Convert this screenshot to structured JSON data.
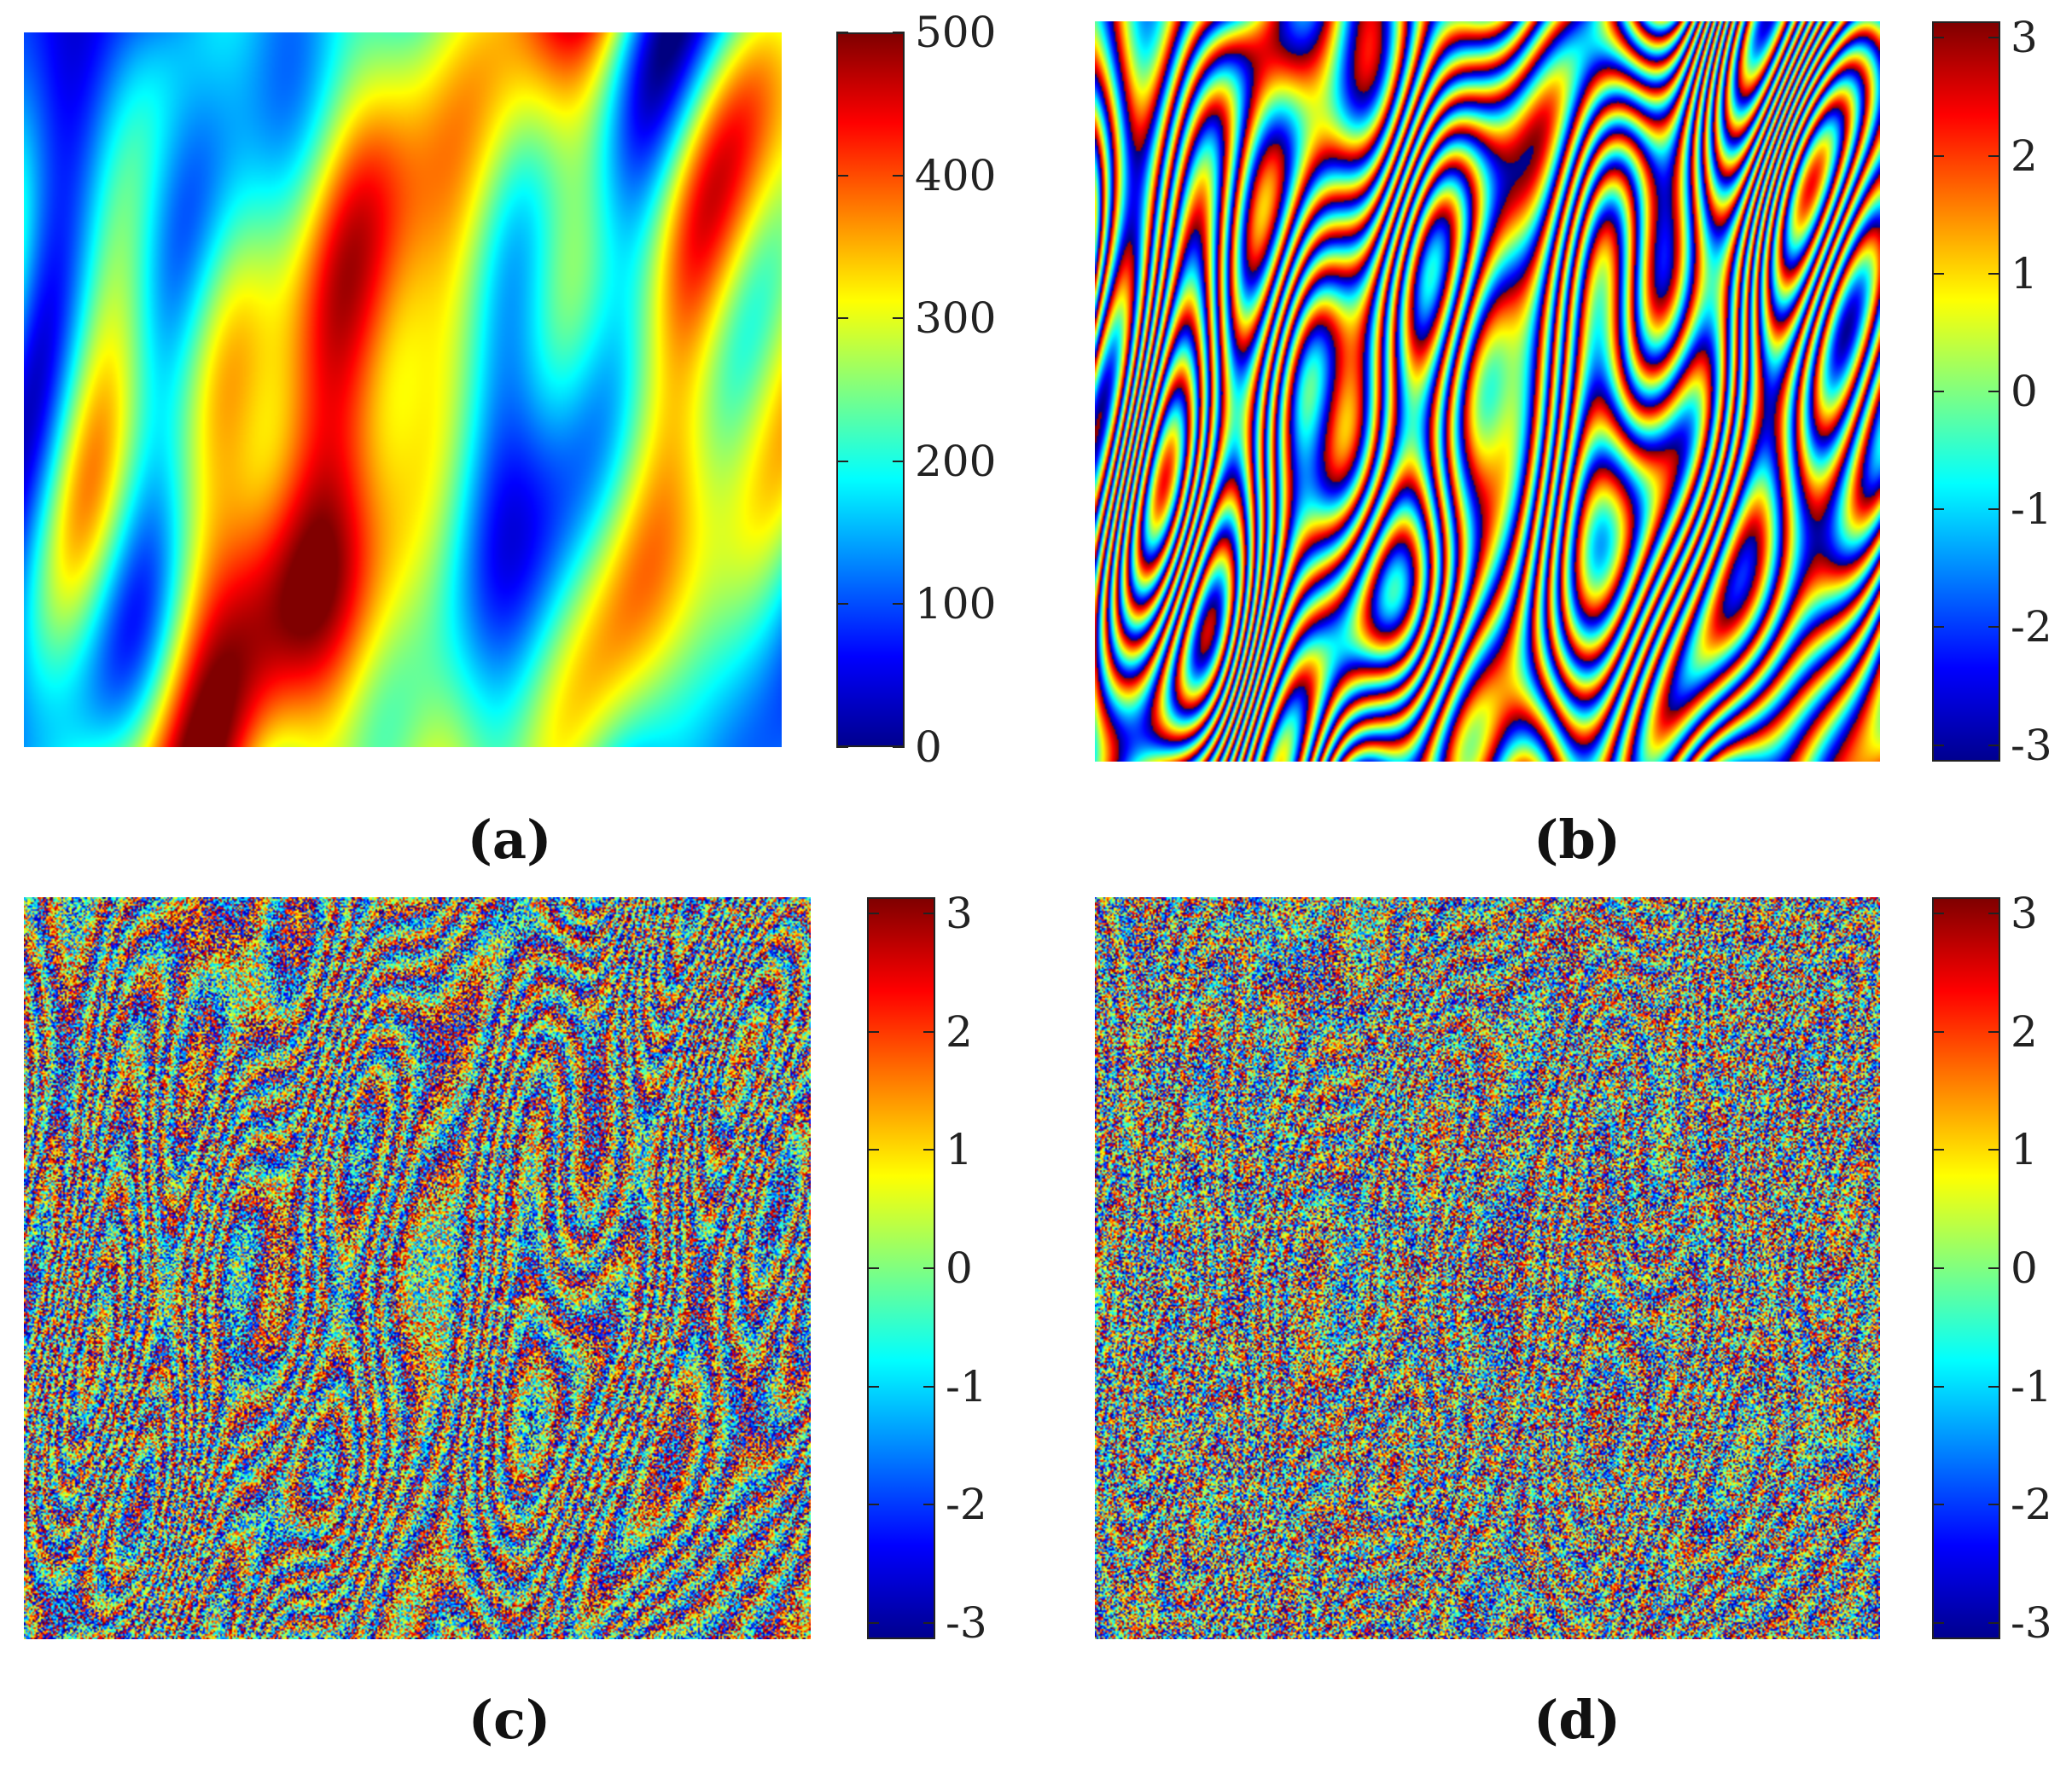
{
  "chart_data": [
    {
      "type": "heatmap",
      "panel_label": "(a)",
      "colormap": "jet",
      "colorbar": {
        "range": [
          0,
          500
        ],
        "ticks": [
          "0",
          "100",
          "200",
          "300",
          "400",
          "500"
        ]
      },
      "pattern": "smooth_height",
      "seed": 11
    },
    {
      "type": "heatmap",
      "panel_label": "(b)",
      "colormap": "jet",
      "colorbar": {
        "range": [
          -3.14,
          3.14
        ],
        "ticks": [
          "-3",
          "-2",
          "-1",
          "0",
          "1",
          "2",
          "3"
        ]
      },
      "pattern": "wrapped_phase",
      "seed": 11,
      "noise": 0
    },
    {
      "type": "heatmap",
      "panel_label": "(c)",
      "colormap": "jet",
      "colorbar": {
        "range": [
          -3.14,
          3.14
        ],
        "ticks": [
          "-3",
          "-2",
          "-1",
          "0",
          "1",
          "2",
          "3"
        ]
      },
      "pattern": "wrapped_phase",
      "seed": 11,
      "noise": 0.7
    },
    {
      "type": "heatmap",
      "panel_label": "(d)",
      "colormap": "jet",
      "colorbar": {
        "range": [
          -3.14,
          3.14
        ],
        "ticks": [
          "-3",
          "-2",
          "-1",
          "0",
          "1",
          "2",
          "3"
        ]
      },
      "pattern": "wrapped_phase",
      "seed": 11,
      "noise": 1.4
    }
  ]
}
